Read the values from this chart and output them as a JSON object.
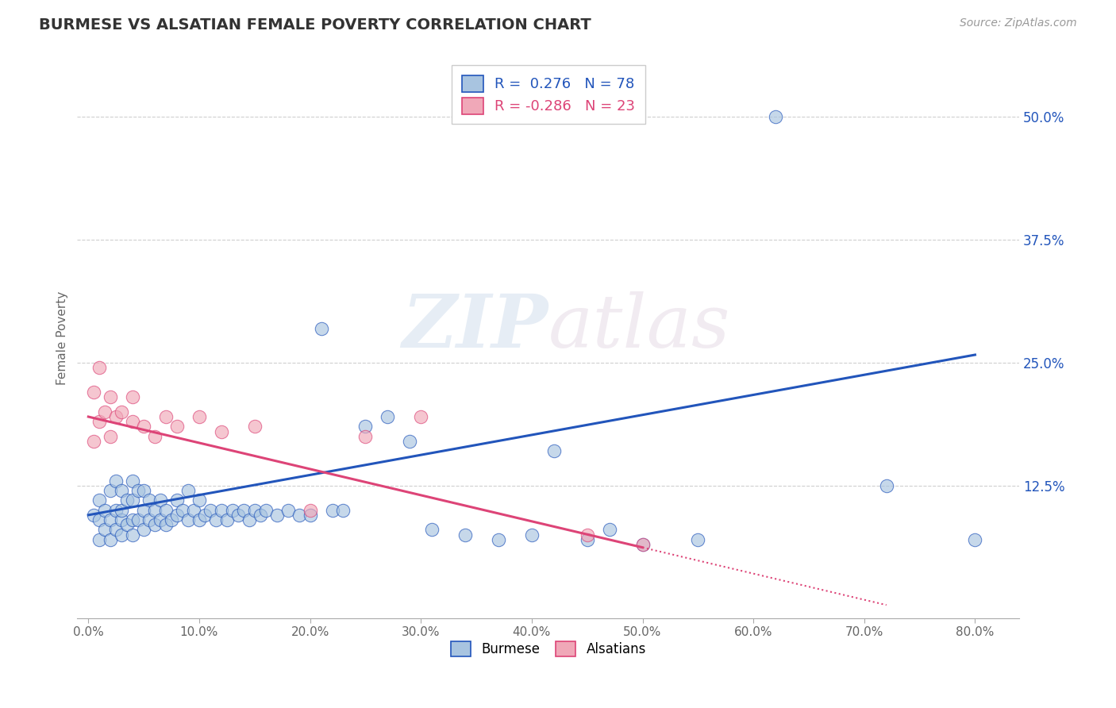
{
  "title": "BURMESE VS ALSATIAN FEMALE POVERTY CORRELATION CHART",
  "source_text": "Source: ZipAtlas.com",
  "xlabel_ticks": [
    0.0,
    0.1,
    0.2,
    0.3,
    0.4,
    0.5,
    0.6,
    0.7,
    0.8
  ],
  "xlabel_labels": [
    "0.0%",
    "10.0%",
    "20.0%",
    "30.0%",
    "40.0%",
    "50.0%",
    "60.0%",
    "70.0%",
    "80.0%"
  ],
  "ylabel_ticks": [
    0.125,
    0.25,
    0.375,
    0.5
  ],
  "ylabel_labels": [
    "12.5%",
    "25.0%",
    "37.5%",
    "50.0%"
  ],
  "xlim": [
    -0.01,
    0.84
  ],
  "ylim": [
    -0.01,
    0.56
  ],
  "burmese_color": "#a8c4e0",
  "alsatian_color": "#f0a8b8",
  "burmese_line_color": "#2255bb",
  "alsatian_line_color": "#dd4477",
  "burmese_R": 0.276,
  "burmese_N": 78,
  "alsatian_R": -0.286,
  "alsatian_N": 23,
  "legend_label_burmese": "Burmese",
  "legend_label_alsatian": "Alsatians",
  "ylabel": "Female Poverty",
  "burmese_x": [
    0.005,
    0.01,
    0.01,
    0.01,
    0.015,
    0.015,
    0.02,
    0.02,
    0.02,
    0.025,
    0.025,
    0.025,
    0.03,
    0.03,
    0.03,
    0.03,
    0.035,
    0.035,
    0.04,
    0.04,
    0.04,
    0.04,
    0.045,
    0.045,
    0.05,
    0.05,
    0.05,
    0.055,
    0.055,
    0.06,
    0.06,
    0.065,
    0.065,
    0.07,
    0.07,
    0.075,
    0.08,
    0.08,
    0.085,
    0.09,
    0.09,
    0.095,
    0.1,
    0.1,
    0.105,
    0.11,
    0.115,
    0.12,
    0.125,
    0.13,
    0.135,
    0.14,
    0.145,
    0.15,
    0.155,
    0.16,
    0.17,
    0.18,
    0.19,
    0.2,
    0.21,
    0.22,
    0.23,
    0.25,
    0.27,
    0.29,
    0.31,
    0.34,
    0.37,
    0.4,
    0.42,
    0.45,
    0.47,
    0.5,
    0.55,
    0.62,
    0.72,
    0.8
  ],
  "burmese_y": [
    0.095,
    0.07,
    0.09,
    0.11,
    0.08,
    0.1,
    0.07,
    0.09,
    0.12,
    0.08,
    0.1,
    0.13,
    0.075,
    0.09,
    0.1,
    0.12,
    0.085,
    0.11,
    0.075,
    0.09,
    0.11,
    0.13,
    0.09,
    0.12,
    0.08,
    0.1,
    0.12,
    0.09,
    0.11,
    0.085,
    0.1,
    0.09,
    0.11,
    0.085,
    0.1,
    0.09,
    0.095,
    0.11,
    0.1,
    0.09,
    0.12,
    0.1,
    0.09,
    0.11,
    0.095,
    0.1,
    0.09,
    0.1,
    0.09,
    0.1,
    0.095,
    0.1,
    0.09,
    0.1,
    0.095,
    0.1,
    0.095,
    0.1,
    0.095,
    0.095,
    0.285,
    0.1,
    0.1,
    0.185,
    0.195,
    0.17,
    0.08,
    0.075,
    0.07,
    0.075,
    0.16,
    0.07,
    0.08,
    0.065,
    0.07,
    0.5,
    0.125,
    0.07
  ],
  "alsatian_x": [
    0.005,
    0.005,
    0.01,
    0.01,
    0.015,
    0.02,
    0.02,
    0.025,
    0.03,
    0.04,
    0.04,
    0.05,
    0.06,
    0.07,
    0.08,
    0.1,
    0.12,
    0.15,
    0.2,
    0.25,
    0.3,
    0.45,
    0.5
  ],
  "alsatian_y": [
    0.17,
    0.22,
    0.19,
    0.245,
    0.2,
    0.175,
    0.215,
    0.195,
    0.2,
    0.215,
    0.19,
    0.185,
    0.175,
    0.195,
    0.185,
    0.195,
    0.18,
    0.185,
    0.1,
    0.175,
    0.195,
    0.075,
    0.065
  ],
  "watermark_zip": "ZIP",
  "watermark_atlas": "atlas",
  "grid_color": "#bbbbbb",
  "background_color": "#ffffff",
  "pink_line_solid_end": 0.5,
  "pink_line_dash_end": 0.72
}
